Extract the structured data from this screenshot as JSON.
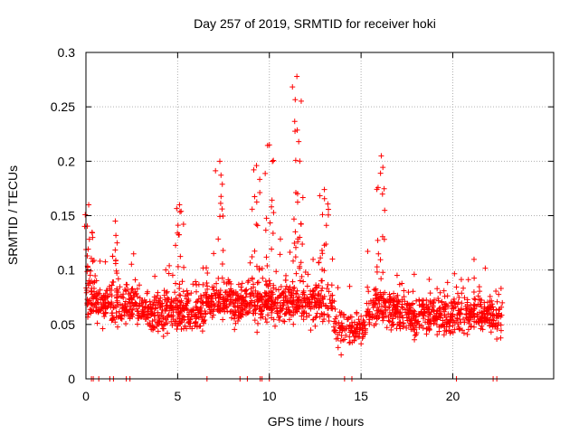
{
  "chart_data": {
    "type": "scatter",
    "title": "Day 257 of 2019, SRMTID for receiver hoki",
    "xlabel": "GPS time / hours",
    "ylabel": "SRMTID / TECUs",
    "xlim": [
      0,
      25.5
    ],
    "ylim": [
      0,
      0.3
    ],
    "xticks": [
      0,
      5,
      10,
      15,
      20
    ],
    "xtick_labels": [
      "0",
      "5",
      "10",
      "15",
      "20"
    ],
    "yticks": [
      0,
      0.05,
      0.1,
      0.15,
      0.2,
      0.25,
      0.3
    ],
    "ytick_labels": [
      "0",
      "0.05",
      "0.1",
      "0.15",
      "0.2",
      "0.25",
      "0.3"
    ],
    "grid": true,
    "marker": "plus",
    "color": "#ff0000",
    "series": [
      {
        "name": "SRMTID",
        "description_points": "approximately 2000 points sampled across 0-22.7 hours",
        "peaks": [
          {
            "x": 0.15,
            "y": 0.16
          },
          {
            "x": 1.6,
            "y": 0.145
          },
          {
            "x": 5.1,
            "y": 0.16
          },
          {
            "x": 7.3,
            "y": 0.2
          },
          {
            "x": 9.3,
            "y": 0.196
          },
          {
            "x": 10.0,
            "y": 0.215
          },
          {
            "x": 11.5,
            "y": 0.278
          },
          {
            "x": 11.6,
            "y": 0.218
          },
          {
            "x": 13.0,
            "y": 0.174
          },
          {
            "x": 16.1,
            "y": 0.205
          }
        ],
        "zero_points_x": [
          0.3,
          0.4,
          0.7,
          1.3,
          1.5,
          2.2,
          2.4,
          6.6,
          8.4,
          8.8,
          9.5,
          9.6,
          10.0,
          14.1,
          14.5,
          20.2,
          22.2,
          22.4
        ]
      }
    ],
    "colors": {
      "series": "#ff0000",
      "grid": "#b0b0b0",
      "axes": "#000000"
    }
  }
}
